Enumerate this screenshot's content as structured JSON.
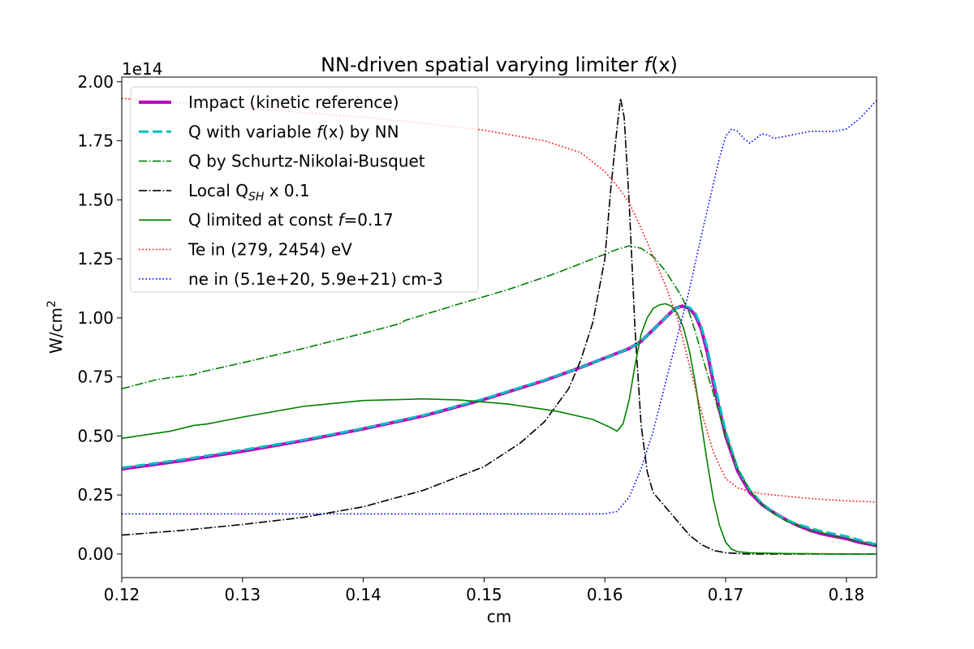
{
  "chart_data": {
    "type": "line",
    "title": "NN-driven spatial varying limiter f(x)",
    "title_parts": {
      "text": "NN-driven spatial varying limiter ",
      "italic": "f",
      "tail": "(x)"
    },
    "xlabel": "cm",
    "ylabel": "W/cm",
    "ylabel_superscript": "2",
    "offset_label": "1e14",
    "xlim": [
      0.12,
      0.1825
    ],
    "ylim": [
      -0.1,
      2.02
    ],
    "xticks": [
      0.12,
      0.13,
      0.14,
      0.15,
      0.16,
      0.17,
      0.18
    ],
    "xtick_labels": [
      "0.12",
      "0.13",
      "0.14",
      "0.15",
      "0.16",
      "0.17",
      "0.18"
    ],
    "yticks": [
      0.0,
      0.25,
      0.5,
      0.75,
      1.0,
      1.25,
      1.5,
      1.75,
      2.0
    ],
    "ytick_labels": [
      "0.00",
      "0.25",
      "0.50",
      "0.75",
      "1.00",
      "1.25",
      "1.50",
      "1.75",
      "2.00"
    ],
    "grid": false,
    "legend_position": "top-left",
    "series": [
      {
        "name": "Impact (kinetic reference)",
        "legend_parts": [
          "Impact (kinetic reference)"
        ],
        "color": "#bf00bf",
        "style": "solid",
        "width": 4,
        "x": [
          0.12,
          0.125,
          0.13,
          0.135,
          0.14,
          0.145,
          0.15,
          0.155,
          0.158,
          0.16,
          0.162,
          0.163,
          0.164,
          0.165,
          0.1658,
          0.1664,
          0.167,
          0.1675,
          0.168,
          0.1685,
          0.169,
          0.17,
          0.171,
          0.172,
          0.173,
          0.174,
          0.175,
          0.176,
          0.177,
          0.178,
          0.179,
          0.18,
          0.181,
          0.1825
        ],
        "y": [
          0.36,
          0.395,
          0.435,
          0.48,
          0.53,
          0.585,
          0.655,
          0.735,
          0.79,
          0.83,
          0.87,
          0.9,
          0.95,
          1.0,
          1.04,
          1.05,
          1.04,
          1.01,
          0.95,
          0.85,
          0.72,
          0.5,
          0.35,
          0.26,
          0.21,
          0.175,
          0.145,
          0.12,
          0.1,
          0.085,
          0.075,
          0.065,
          0.05,
          0.035
        ]
      },
      {
        "name": "Q with variable f(x) by NN",
        "legend_parts": [
          "Q with variable ",
          "f",
          "(x) by NN"
        ],
        "color": "#00bfbf",
        "style": "dashed",
        "width": 3,
        "x": [
          0.12,
          0.125,
          0.13,
          0.135,
          0.14,
          0.145,
          0.15,
          0.155,
          0.158,
          0.16,
          0.162,
          0.163,
          0.164,
          0.165,
          0.1658,
          0.1664,
          0.167,
          0.1675,
          0.168,
          0.1685,
          0.169,
          0.17,
          0.171,
          0.172,
          0.173,
          0.174,
          0.175,
          0.176,
          0.177,
          0.178,
          0.179,
          0.18,
          0.181,
          0.1825
        ],
        "y": [
          0.365,
          0.4,
          0.44,
          0.483,
          0.532,
          0.588,
          0.657,
          0.737,
          0.79,
          0.83,
          0.87,
          0.9,
          0.95,
          1.0,
          1.04,
          1.05,
          1.045,
          1.02,
          0.96,
          0.87,
          0.74,
          0.52,
          0.36,
          0.27,
          0.215,
          0.175,
          0.145,
          0.125,
          0.11,
          0.095,
          0.085,
          0.075,
          0.06,
          0.04
        ]
      },
      {
        "name": "Q by Schurtz-Nikolai-Busquet",
        "legend_parts": [
          "Q by Schurtz-Nikolai-Busquet"
        ],
        "color": "#008000",
        "style": "dashdot",
        "width": 1.6,
        "x": [
          0.12,
          0.123,
          0.126,
          0.1265,
          0.13,
          0.135,
          0.14,
          0.143,
          0.1435,
          0.148,
          0.152,
          0.156,
          0.159,
          0.161,
          0.162,
          0.163,
          0.164,
          0.165,
          0.166,
          0.1665,
          0.167,
          0.1675,
          0.168,
          0.1685,
          0.169,
          0.17,
          0.171,
          0.172,
          0.173,
          0.174,
          0.175,
          0.176,
          0.177,
          0.178,
          0.179,
          0.18,
          0.181,
          0.1825
        ],
        "y": [
          0.7,
          0.74,
          0.76,
          0.77,
          0.81,
          0.87,
          0.935,
          0.975,
          0.99,
          1.06,
          1.12,
          1.19,
          1.25,
          1.29,
          1.305,
          1.295,
          1.26,
          1.2,
          1.12,
          1.075,
          1.02,
          0.94,
          0.85,
          0.76,
          0.68,
          0.5,
          0.36,
          0.27,
          0.21,
          0.17,
          0.14,
          0.12,
          0.1,
          0.09,
          0.075,
          0.065,
          0.05,
          0.035
        ]
      },
      {
        "name": "Local Q_SH x 0.1",
        "legend_parts": [
          "Local Q",
          "SH",
          " x 0.1"
        ],
        "color": "#000000",
        "style": "dashdot",
        "width": 1.6,
        "x": [
          0.12,
          0.125,
          0.13,
          0.135,
          0.14,
          0.145,
          0.15,
          0.153,
          0.155,
          0.157,
          0.158,
          0.159,
          0.16,
          0.1605,
          0.161,
          0.1613,
          0.1616,
          0.162,
          0.1625,
          0.163,
          0.1635,
          0.164,
          0.165,
          0.166,
          0.167,
          0.168,
          0.169,
          0.17,
          0.171,
          0.172,
          0.175,
          0.18,
          0.1825
        ],
        "y": [
          0.08,
          0.1,
          0.125,
          0.155,
          0.2,
          0.27,
          0.37,
          0.47,
          0.56,
          0.7,
          0.82,
          0.98,
          1.25,
          1.55,
          1.8,
          1.93,
          1.85,
          1.5,
          0.95,
          0.55,
          0.35,
          0.26,
          0.2,
          0.14,
          0.08,
          0.04,
          0.015,
          0.005,
          0.002,
          0.0,
          0.0,
          0.0,
          0.0
        ]
      },
      {
        "name": "Q limited at const f=0.17",
        "legend_parts": [
          "Q limited at const ",
          "f",
          "=0.17"
        ],
        "color": "#008000",
        "style": "solid",
        "width": 1.6,
        "x": [
          0.12,
          0.124,
          0.126,
          0.127,
          0.13,
          0.135,
          0.14,
          0.145,
          0.148,
          0.152,
          0.156,
          0.159,
          0.1605,
          0.161,
          0.1615,
          0.162,
          0.1625,
          0.163,
          0.1635,
          0.164,
          0.1645,
          0.165,
          0.1655,
          0.166,
          0.1665,
          0.167,
          0.1675,
          0.168,
          0.1685,
          0.169,
          0.1695,
          0.17,
          0.1705,
          0.171,
          0.172,
          0.175,
          0.18,
          0.1825
        ],
        "y": [
          0.49,
          0.52,
          0.545,
          0.55,
          0.58,
          0.625,
          0.65,
          0.657,
          0.652,
          0.635,
          0.605,
          0.57,
          0.535,
          0.52,
          0.55,
          0.65,
          0.8,
          0.93,
          1.0,
          1.04,
          1.055,
          1.06,
          1.05,
          1.02,
          0.96,
          0.86,
          0.72,
          0.55,
          0.38,
          0.23,
          0.12,
          0.05,
          0.02,
          0.01,
          0.005,
          0.002,
          0.0,
          0.0
        ]
      },
      {
        "name": "Te in (279, 2454) eV",
        "legend_parts": [
          "Te in (279, 2454) eV"
        ],
        "color": "#ff0000",
        "style": "dotted",
        "width": 1.6,
        "x": [
          0.12,
          0.125,
          0.13,
          0.135,
          0.14,
          0.145,
          0.15,
          0.155,
          0.158,
          0.16,
          0.161,
          0.162,
          0.163,
          0.164,
          0.165,
          0.166,
          0.167,
          0.168,
          0.169,
          0.17,
          0.171,
          0.172,
          0.173,
          0.175,
          0.177,
          0.18,
          0.1825
        ],
        "y": [
          1.93,
          1.91,
          1.89,
          1.87,
          1.85,
          1.825,
          1.795,
          1.75,
          1.7,
          1.62,
          1.56,
          1.49,
          1.38,
          1.26,
          1.14,
          1.0,
          0.8,
          0.6,
          0.43,
          0.32,
          0.28,
          0.265,
          0.255,
          0.245,
          0.235,
          0.225,
          0.22
        ]
      },
      {
        "name": "ne in (5.1e+20, 5.9e+21) cm-3",
        "legend_parts": [
          "ne in (5.1e+20, 5.9e+21) cm-3"
        ],
        "color": "#0000ff",
        "style": "dotted",
        "width": 1.6,
        "x": [
          0.12,
          0.13,
          0.14,
          0.15,
          0.16,
          0.161,
          0.162,
          0.163,
          0.164,
          0.165,
          0.166,
          0.167,
          0.168,
          0.169,
          0.1695,
          0.17,
          0.1705,
          0.171,
          0.1715,
          0.172,
          0.1725,
          0.173,
          0.1735,
          0.174,
          0.175,
          0.176,
          0.177,
          0.178,
          0.179,
          0.18,
          0.181,
          0.1825
        ],
        "y": [
          0.17,
          0.17,
          0.17,
          0.17,
          0.17,
          0.18,
          0.24,
          0.36,
          0.52,
          0.72,
          0.92,
          1.12,
          1.35,
          1.57,
          1.68,
          1.77,
          1.8,
          1.79,
          1.76,
          1.74,
          1.76,
          1.78,
          1.775,
          1.76,
          1.77,
          1.78,
          1.79,
          1.79,
          1.79,
          1.8,
          1.84,
          1.92
        ]
      }
    ]
  }
}
